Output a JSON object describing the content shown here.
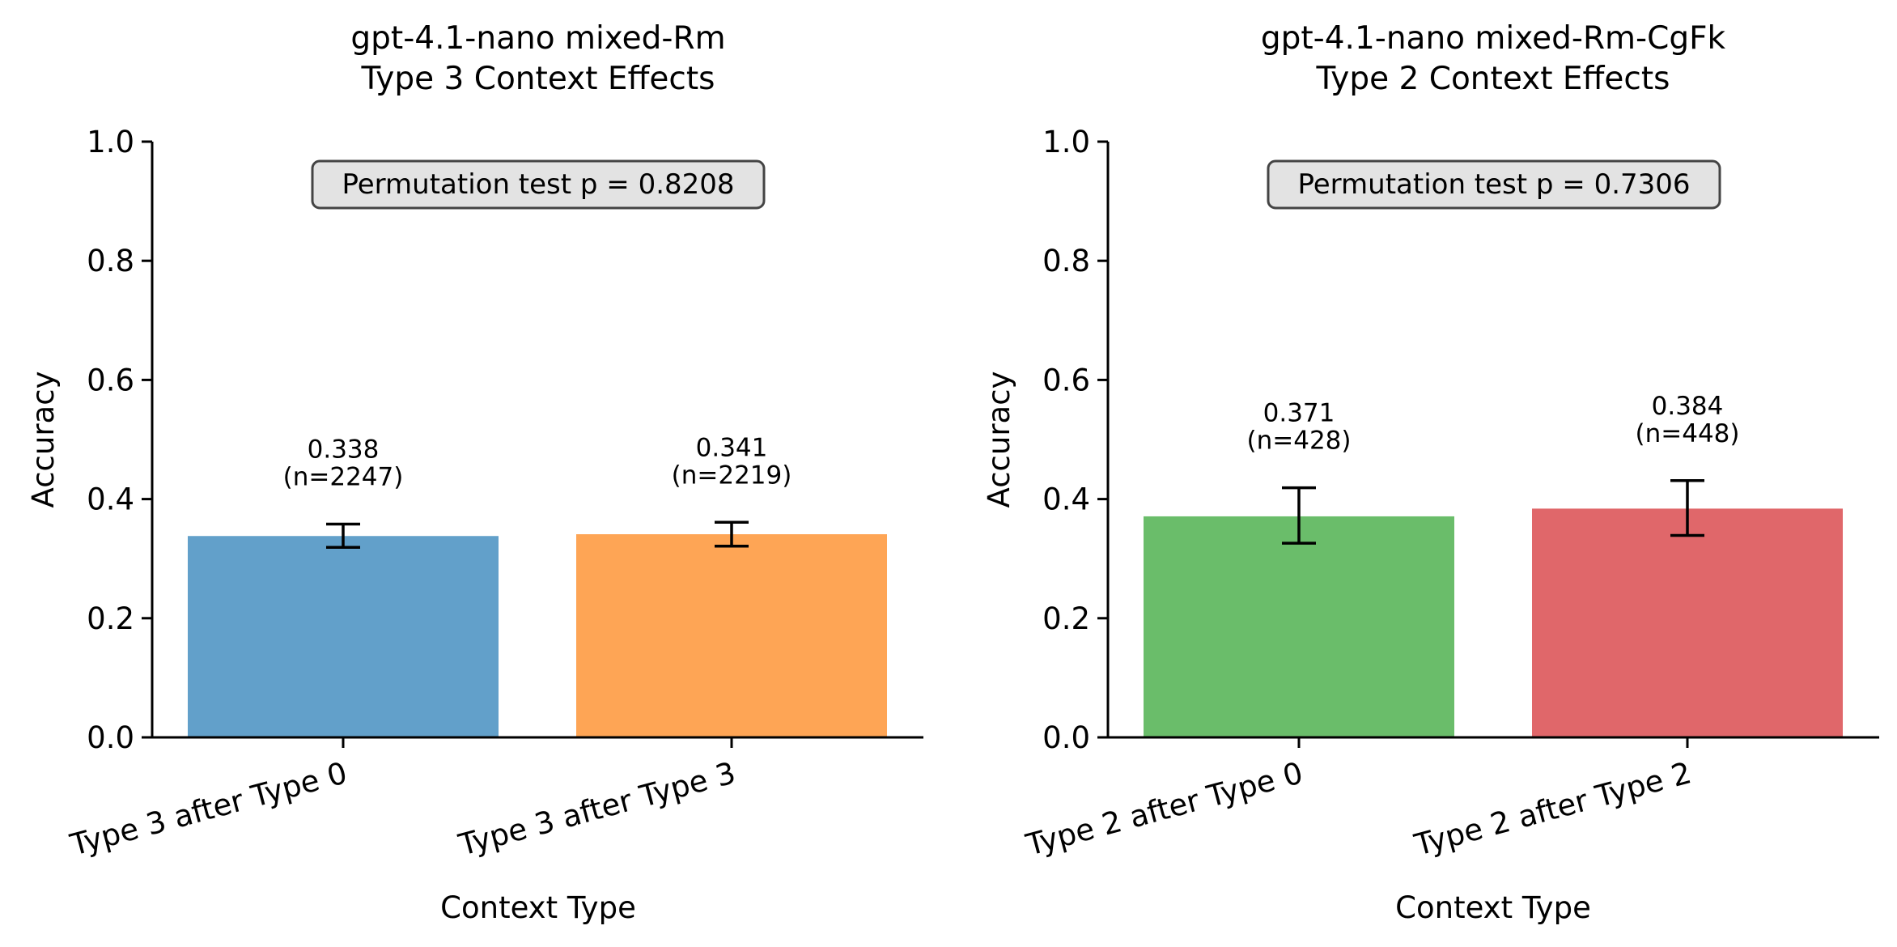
{
  "chart_data": [
    {
      "type": "bar",
      "title_line1": "gpt-4.1-nano mixed-Rm",
      "title_line2": "Type 3 Context Effects",
      "xlabel": "Context Type",
      "ylabel": "Accuracy",
      "ylim": [
        0,
        1
      ],
      "yticks": [
        "0.0",
        "0.2",
        "0.4",
        "0.6",
        "0.8",
        "1.0"
      ],
      "categories": [
        "Type 3 after Type 0",
        "Type 3 after Type 3"
      ],
      "values": [
        0.338,
        0.341
      ],
      "error_low": [
        0.319,
        0.321
      ],
      "error_high": [
        0.358,
        0.361
      ],
      "value_labels": [
        "0.338",
        "0.341"
      ],
      "n_labels": [
        "(n=2247)",
        "(n=2219)"
      ],
      "colors": [
        "#62a0ca",
        "#fea555"
      ],
      "annotation": "Permutation test p = 0.8208",
      "grid": false
    },
    {
      "type": "bar",
      "title_line1": "gpt-4.1-nano mixed-Rm-CgFk",
      "title_line2": "Type 2 Context Effects",
      "xlabel": "Context Type",
      "ylabel": "Accuracy",
      "ylim": [
        0,
        1
      ],
      "yticks": [
        "0.0",
        "0.2",
        "0.4",
        "0.6",
        "0.8",
        "1.0"
      ],
      "categories": [
        "Type 2 after Type 0",
        "Type 2 after Type 2"
      ],
      "values": [
        0.371,
        0.384
      ],
      "error_low": [
        0.326,
        0.339
      ],
      "error_high": [
        0.419,
        0.431
      ],
      "value_labels": [
        "0.371",
        "0.384"
      ],
      "n_labels": [
        "(n=428)",
        "(n=448)"
      ],
      "colors": [
        "#6abd6a",
        "#e0676a"
      ],
      "annotation": "Permutation test p = 0.7306",
      "grid": false
    }
  ]
}
